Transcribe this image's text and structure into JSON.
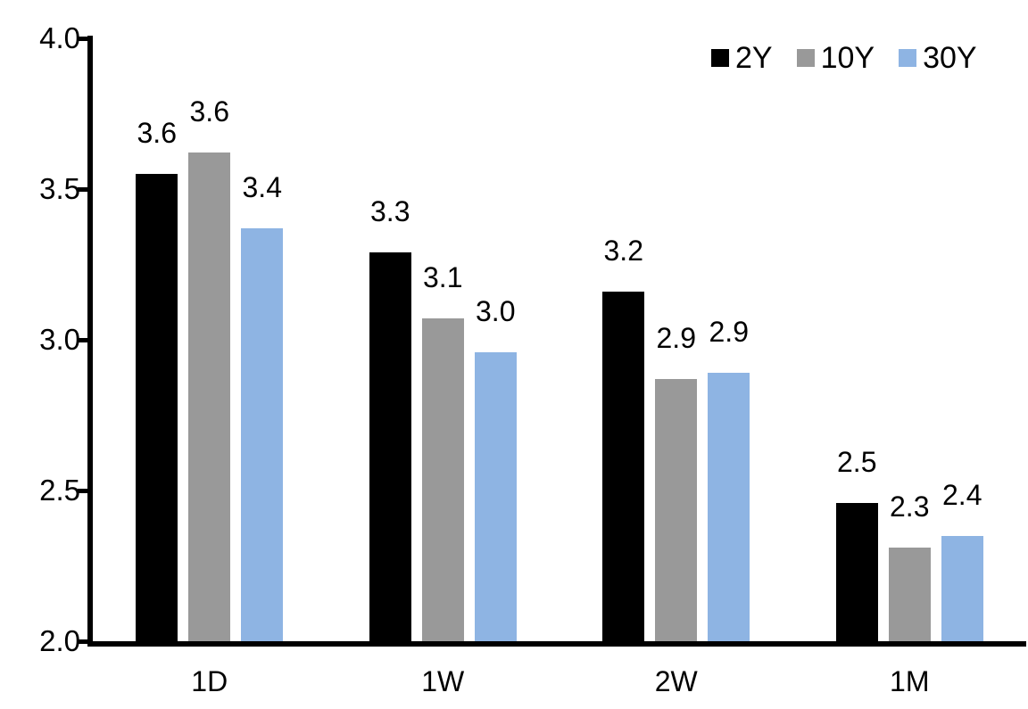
{
  "chart_data": {
    "type": "bar",
    "title": "",
    "xlabel": "",
    "ylabel": "",
    "categories": [
      "1D",
      "1W",
      "2W",
      "1M"
    ],
    "series": [
      {
        "name": "2Y",
        "color": "#000000",
        "values": [
          3.55,
          3.29,
          3.16,
          2.46
        ],
        "labels": [
          "3.6",
          "3.3",
          "3.2",
          "2.5"
        ]
      },
      {
        "name": "10Y",
        "color": "#999999",
        "values": [
          3.62,
          3.07,
          2.87,
          2.31
        ],
        "labels": [
          "3.6",
          "3.1",
          "2.9",
          "2.3"
        ]
      },
      {
        "name": "30Y",
        "color": "#8EB4E3",
        "values": [
          3.37,
          2.96,
          2.89,
          2.35
        ],
        "labels": [
          "3.4",
          "3.0",
          "2.9",
          "2.4"
        ]
      }
    ],
    "ylim": [
      2.0,
      4.0
    ],
    "yticks": [
      2.0,
      2.5,
      3.0,
      3.5,
      4.0
    ],
    "ytick_labels": [
      "2.0",
      "2.5",
      "3.0",
      "3.5",
      "4.0"
    ],
    "grid": false,
    "legend_position": "top-right",
    "axis_color": "#000000",
    "background_color": "#FFFFFF",
    "text_color": "#000000"
  }
}
